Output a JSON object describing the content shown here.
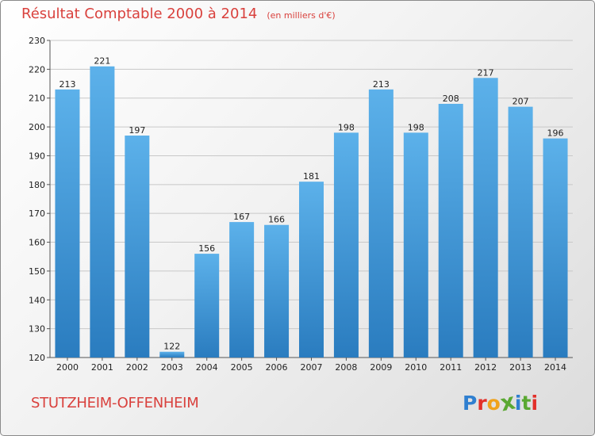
{
  "header": {
    "title": "Résultat Comptable 2000 à 2014",
    "subtitle": "(en milliers d'€)"
  },
  "footer": {
    "commune": "STUTZHEIM-OFFENHEIM",
    "brand": "Proxiti"
  },
  "colors": {
    "title": "#d9413d",
    "bar_top": "#5cb1ea",
    "bar_bottom": "#2a7cbf",
    "logo": [
      "#2f7fd0",
      "#e2312a",
      "#f0a21b",
      "#5aa832",
      "#2f7fd0",
      "#5aa832",
      "#e2312a"
    ]
  },
  "chart_data": {
    "type": "bar",
    "title": "Résultat Comptable 2000 à 2014",
    "subtitle": "(en milliers d'€)",
    "categories": [
      "2000",
      "2001",
      "2002",
      "2003",
      "2004",
      "2005",
      "2006",
      "2007",
      "2008",
      "2009",
      "2010",
      "2011",
      "2012",
      "2013",
      "2014"
    ],
    "values": [
      213,
      221,
      197,
      122,
      156,
      167,
      166,
      181,
      198,
      213,
      198,
      208,
      217,
      207,
      196
    ],
    "ylim": [
      120,
      230
    ],
    "yticks": [
      120,
      130,
      140,
      150,
      160,
      170,
      180,
      190,
      200,
      210,
      220,
      230
    ],
    "grid": true,
    "data_labels": true
  }
}
